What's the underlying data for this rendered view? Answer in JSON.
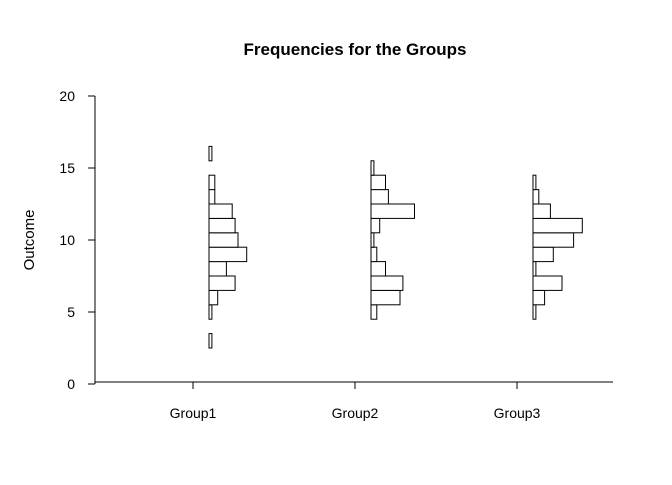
{
  "chart_data": {
    "type": "histogram",
    "orientation": "horizontal-per-group",
    "title": "Frequencies for the Groups",
    "xlabel": "",
    "ylabel": "Outcome",
    "ylim": [
      0,
      20
    ],
    "yticks": [
      "0",
      "5",
      "10",
      "15",
      "20"
    ],
    "categories": [
      "Group1",
      "Group2",
      "Group3"
    ],
    "bin_width": 1,
    "groups": [
      {
        "category": "Group1",
        "bins": [
          {
            "from": 2.5,
            "to": 3.5,
            "count": 1
          },
          {
            "from": 4.5,
            "to": 5.5,
            "count": 1
          },
          {
            "from": 5.5,
            "to": 6.5,
            "count": 3
          },
          {
            "from": 6.5,
            "to": 7.5,
            "count": 9
          },
          {
            "from": 7.5,
            "to": 8.5,
            "count": 6
          },
          {
            "from": 8.5,
            "to": 9.5,
            "count": 13
          },
          {
            "from": 9.5,
            "to": 10.5,
            "count": 10
          },
          {
            "from": 10.5,
            "to": 11.5,
            "count": 9
          },
          {
            "from": 11.5,
            "to": 12.5,
            "count": 8
          },
          {
            "from": 12.5,
            "to": 13.5,
            "count": 2
          },
          {
            "from": 13.5,
            "to": 14.5,
            "count": 2
          },
          {
            "from": 15.5,
            "to": 16.5,
            "count": 1
          }
        ]
      },
      {
        "category": "Group2",
        "bins": [
          {
            "from": 4.5,
            "to": 5.5,
            "count": 2
          },
          {
            "from": 5.5,
            "to": 6.5,
            "count": 10
          },
          {
            "from": 6.5,
            "to": 7.5,
            "count": 11
          },
          {
            "from": 7.5,
            "to": 8.5,
            "count": 5
          },
          {
            "from": 8.5,
            "to": 9.5,
            "count": 2
          },
          {
            "from": 9.5,
            "to": 10.5,
            "count": 1
          },
          {
            "from": 10.5,
            "to": 11.5,
            "count": 3
          },
          {
            "from": 11.5,
            "to": 12.5,
            "count": 15
          },
          {
            "from": 12.5,
            "to": 13.5,
            "count": 6
          },
          {
            "from": 13.5,
            "to": 14.5,
            "count": 5
          },
          {
            "from": 14.5,
            "to": 15.5,
            "count": 1
          }
        ]
      },
      {
        "category": "Group3",
        "bins": [
          {
            "from": 4.5,
            "to": 5.5,
            "count": 1
          },
          {
            "from": 5.5,
            "to": 6.5,
            "count": 4
          },
          {
            "from": 6.5,
            "to": 7.5,
            "count": 10
          },
          {
            "from": 7.5,
            "to": 8.5,
            "count": 1
          },
          {
            "from": 8.5,
            "to": 9.5,
            "count": 7
          },
          {
            "from": 9.5,
            "to": 10.5,
            "count": 14
          },
          {
            "from": 10.5,
            "to": 11.5,
            "count": 17
          },
          {
            "from": 11.5,
            "to": 12.5,
            "count": 6
          },
          {
            "from": 12.5,
            "to": 13.5,
            "count": 2
          },
          {
            "from": 13.5,
            "to": 14.5,
            "count": 1
          }
        ]
      }
    ],
    "grid": false,
    "legend": "none"
  }
}
